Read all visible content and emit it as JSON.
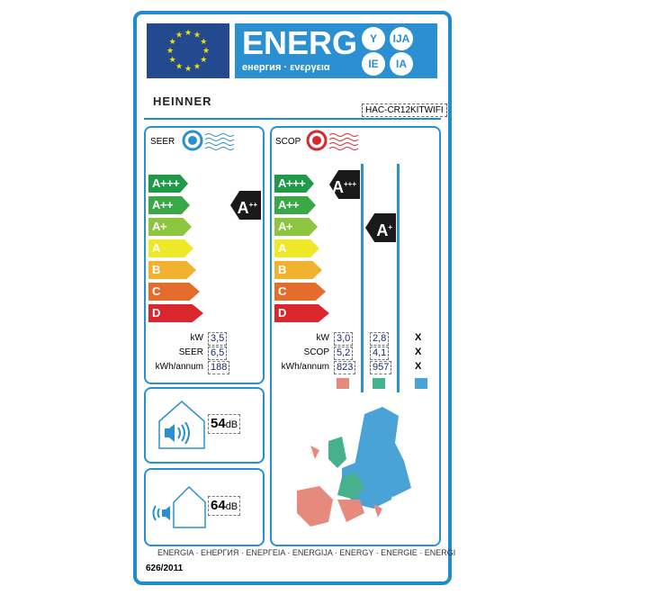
{
  "header": {
    "energ": "ENERG",
    "subtitle": "енергия · ενεργεια",
    "suffixes": [
      "Y",
      "IJA",
      "IE",
      "IA"
    ]
  },
  "brand": "HEINNER",
  "model": "HAC-CR12KITWIFI",
  "scale": {
    "classes": [
      "A+++",
      "A++",
      "A+",
      "A",
      "B",
      "C",
      "D"
    ],
    "colors": [
      "#1e9a48",
      "#3aa847",
      "#8ec53f",
      "#efe829",
      "#f2b22f",
      "#e46c2c",
      "#d9272d"
    ]
  },
  "cooling": {
    "title": "SEER",
    "icon": "fan-cold-icon",
    "rating": "A++",
    "rows": [
      {
        "label": "kW",
        "value": "3,5"
      },
      {
        "label": "SEER",
        "value": "6,5"
      },
      {
        "label": "kWh/annum",
        "value": "188"
      }
    ]
  },
  "heating": {
    "title": "SCOP",
    "icon": "fan-heat-icon",
    "ratings": {
      "warmer": "A+++",
      "average": "A+"
    },
    "labels": [
      "kW",
      "SCOP",
      "kWh/annum"
    ],
    "columns": [
      {
        "zone": "warmer",
        "color": "#e58a7d",
        "values": [
          "3,0",
          "5,2",
          "823"
        ]
      },
      {
        "zone": "average",
        "color": "#46b18d",
        "values": [
          "2,8",
          "4,1",
          "957"
        ]
      },
      {
        "zone": "colder",
        "color": "#4aa3d6",
        "values": [
          "X",
          "X",
          "X"
        ]
      }
    ]
  },
  "noise": {
    "indoor": {
      "value": "54",
      "unit": "dB"
    },
    "outdoor": {
      "value": "64",
      "unit": "dB"
    }
  },
  "footer": "ENERGIA · ЕНЕРГИЯ · ΕΝΕΡΓΕΙΑ · ENERGIJA · ENERGY · ENERGIE · ENERGI",
  "regulation": "626/2011"
}
